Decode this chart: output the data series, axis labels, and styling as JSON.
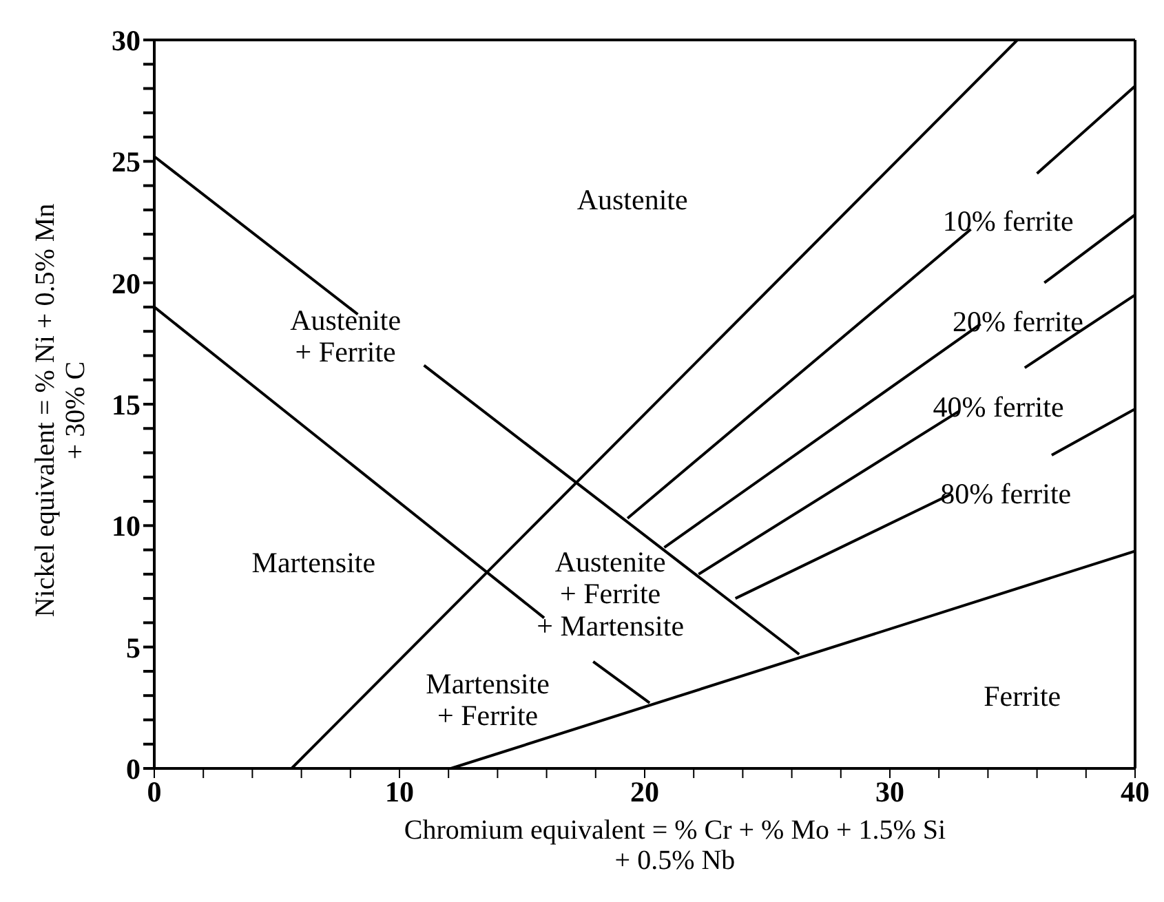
{
  "chart_data": {
    "type": "line",
    "xlabel": "Chromium equivalent = % Cr + % Mo + 1.5% Si\n+ 0.5% Nb",
    "ylabel": "Nickel equivalent = % Ni + 0.5% Mn\n+ 30% C",
    "xlim": [
      0,
      40
    ],
    "ylim": [
      0,
      30
    ],
    "xticks": [
      0,
      {
        "value": 2,
        "label": null
      },
      {
        "value": 4,
        "label": null
      },
      {
        "value": 6,
        "label": null
      },
      {
        "value": 8,
        "label": null
      },
      10,
      {
        "value": 12,
        "label": null
      },
      {
        "value": 14,
        "label": null
      },
      {
        "value": 16,
        "label": null
      },
      {
        "value": 18,
        "label": null
      },
      20,
      {
        "value": 22,
        "label": null
      },
      {
        "value": 24,
        "label": null
      },
      {
        "value": 26,
        "label": null
      },
      {
        "value": 28,
        "label": null
      },
      30,
      {
        "value": 32,
        "label": null
      },
      {
        "value": 34,
        "label": null
      },
      {
        "value": 36,
        "label": null
      },
      {
        "value": 38,
        "label": null
      },
      40
    ],
    "yticks": [
      0,
      {
        "value": 1,
        "label": null
      },
      {
        "value": 2,
        "label": null
      },
      {
        "value": 3,
        "label": null
      },
      {
        "value": 4,
        "label": null
      },
      5,
      {
        "value": 6,
        "label": null
      },
      {
        "value": 7,
        "label": null
      },
      {
        "value": 8,
        "label": null
      },
      {
        "value": 9,
        "label": null
      },
      10,
      {
        "value": 11,
        "label": null
      },
      {
        "value": 12,
        "label": null
      },
      {
        "value": 13,
        "label": null
      },
      {
        "value": 14,
        "label": null
      },
      15,
      {
        "value": 16,
        "label": null
      },
      {
        "value": 17,
        "label": null
      },
      {
        "value": 18,
        "label": null
      },
      {
        "value": 19,
        "label": null
      },
      20,
      {
        "value": 21,
        "label": null
      },
      {
        "value": 22,
        "label": null
      },
      {
        "value": 23,
        "label": null
      },
      {
        "value": 24,
        "label": null
      },
      25,
      {
        "value": 26,
        "label": null
      },
      {
        "value": 27,
        "label": null
      },
      {
        "value": 28,
        "label": null
      },
      {
        "value": 29,
        "label": null
      },
      30
    ],
    "marker": "none",
    "line_style": "solid",
    "series": [
      {
        "color": "#000000",
        "x": [
          0,
          8.3,
          9.6,
          11,
          26.3
        ],
        "values": [
          25.2,
          18.7,
          null,
          16.6,
          4.7
        ]
      },
      {
        "color": "#000000",
        "x": [
          0,
          15.9,
          16.9,
          17.9,
          20.2
        ],
        "values": [
          19.0,
          6.2,
          null,
          4.4,
          2.7
        ]
      },
      {
        "color": "#000000",
        "x": [
          5.6,
          35.2
        ],
        "values": [
          0,
          30
        ]
      },
      {
        "color": "#000000",
        "x": [
          12.1,
          40
        ],
        "values": [
          0,
          8.95
        ]
      },
      {
        "name": "10% ferrite",
        "color": "#000000",
        "x": [
          19.3,
          33.3,
          34.6,
          36.0,
          40
        ],
        "values": [
          10.3,
          22.2,
          null,
          24.5,
          28.1
        ]
      },
      {
        "name": "20% ferrite",
        "color": "#000000",
        "x": [
          20.8,
          33.7,
          35.0,
          36.3,
          40
        ],
        "values": [
          9.1,
          18.3,
          null,
          20.0,
          22.8
        ]
      },
      {
        "name": "40% ferrite",
        "color": "#000000",
        "x": [
          22.2,
          32.8,
          34.2,
          35.5,
          40
        ],
        "values": [
          8.0,
          14.7,
          null,
          16.5,
          19.5
        ]
      },
      {
        "name": "80% ferrite",
        "color": "#000000",
        "x": [
          23.7,
          32.5,
          34.5,
          36.6,
          40
        ],
        "values": [
          7.0,
          11.3,
          null,
          12.9,
          14.8
        ]
      }
    ],
    "annotations": [
      "Austenite",
      "Austenite\n+ Ferrite",
      "Martensite",
      "Austenite\n+ Ferrite\n+ Martensite",
      "Martensite\n+ Ferrite",
      "Ferrite"
    ]
  }
}
